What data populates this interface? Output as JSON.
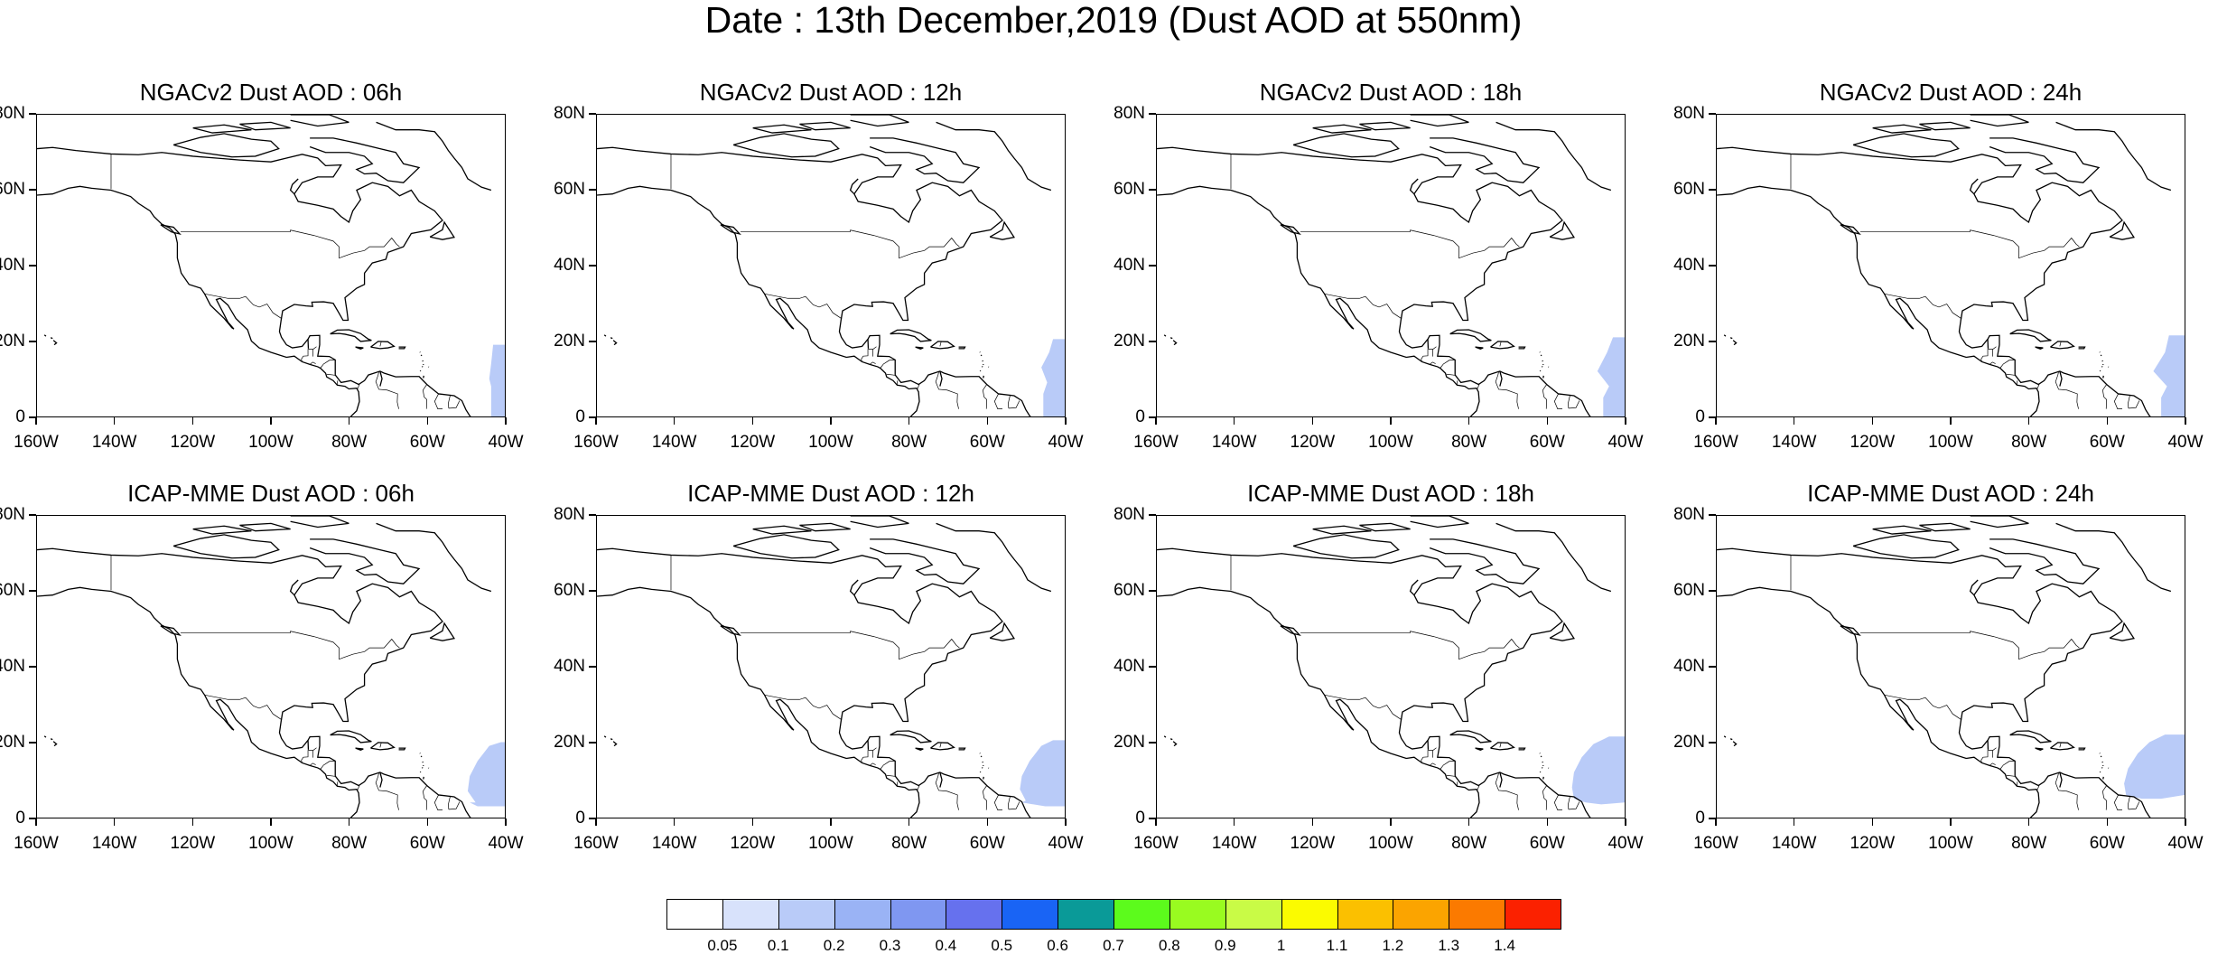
{
  "title": "Date : 13th December,2019 (Dust AOD at 550nm)",
  "panels": [
    {
      "title": "NGACv2 Dust AOD : 06h",
      "dust_level": 0.1
    },
    {
      "title": "NGACv2 Dust AOD : 12h",
      "dust_level": 0.1
    },
    {
      "title": "NGACv2 Dust AOD : 18h",
      "dust_level": 0.1
    },
    {
      "title": "NGACv2 Dust AOD : 24h",
      "dust_level": 0.1
    },
    {
      "title": "ICAP-MME Dust AOD : 06h",
      "dust_level": 0.1
    },
    {
      "title": "ICAP-MME Dust AOD : 12h",
      "dust_level": 0.1
    },
    {
      "title": "ICAP-MME Dust AOD : 18h",
      "dust_level": 0.1
    },
    {
      "title": "ICAP-MME Dust AOD : 24h",
      "dust_level": 0.1
    }
  ],
  "lat_ticks": [
    "80N",
    "60N",
    "40N",
    "20N",
    "0"
  ],
  "lon_ticks": [
    "160W",
    "140W",
    "120W",
    "100W",
    "80W",
    "60W",
    "40W"
  ],
  "colorbar": {
    "labels": [
      "0.05",
      "0.1",
      "0.2",
      "0.3",
      "0.4",
      "0.5",
      "0.6",
      "0.7",
      "0.8",
      "0.9",
      "1",
      "1.1",
      "1.2",
      "1.3",
      "1.4"
    ],
    "colors": [
      "#ffffff",
      "#d8e2fb",
      "#b9cbf8",
      "#9ab3f5",
      "#7f97f1",
      "#6671ee",
      "#1964f5",
      "#0a9a98",
      "#5cfb1c",
      "#99fb20",
      "#c9fb46",
      "#fbfb00",
      "#fbc000",
      "#fba400",
      "#fb7a00",
      "#fb2100"
    ]
  }
}
